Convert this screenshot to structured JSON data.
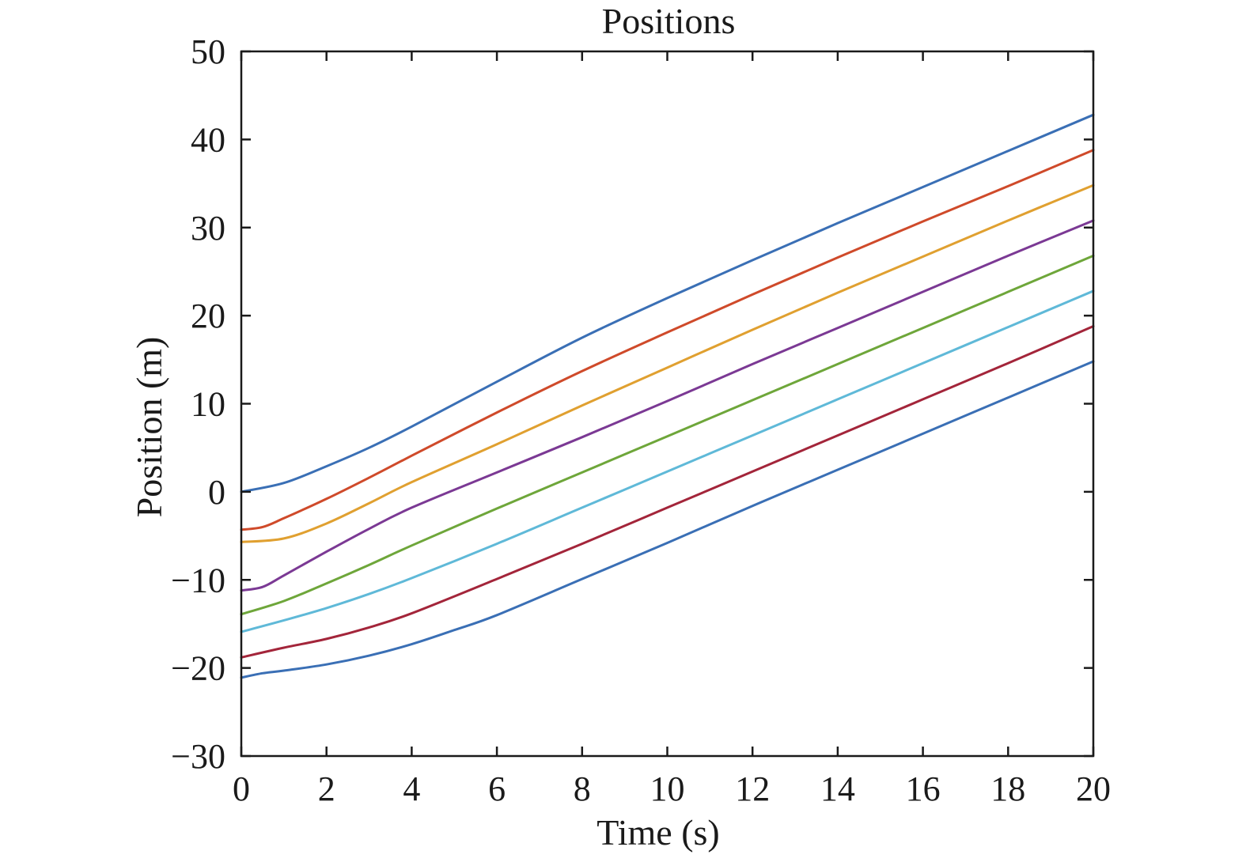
{
  "chart_data": {
    "type": "line",
    "title": "Positions",
    "xlabel": "Time (s)",
    "ylabel": "Position (m)",
    "xlim": [
      0,
      20
    ],
    "ylim": [
      -30,
      50
    ],
    "xticks": [
      0,
      2,
      4,
      6,
      8,
      10,
      12,
      14,
      16,
      18,
      20
    ],
    "yticks": [
      -30,
      -20,
      -10,
      0,
      10,
      20,
      30,
      40,
      50
    ],
    "xtick_labels": [
      "0",
      "2",
      "4",
      "6",
      "8",
      "10",
      "12",
      "14",
      "16",
      "18",
      "20"
    ],
    "ytick_labels": [
      "−30",
      "−20",
      "−10",
      "0",
      "10",
      "20",
      "30",
      "40",
      "50"
    ],
    "grid": false,
    "legend": "none",
    "series": [
      {
        "color": "#3a6fb5",
        "x": [
          0,
          1,
          2,
          3,
          4,
          6,
          8,
          10,
          12,
          14,
          16,
          18,
          20
        ],
        "y": [
          0,
          1.0,
          2.9,
          5.0,
          7.4,
          12.5,
          17.5,
          22.0,
          26.3,
          30.5,
          34.6,
          38.7,
          42.8
        ]
      },
      {
        "color": "#cf4a2a",
        "x": [
          0,
          0.5,
          1,
          2,
          3,
          4,
          6,
          8,
          10,
          12,
          14,
          16,
          18,
          20
        ],
        "y": [
          -4.3,
          -4.0,
          -3.0,
          -0.8,
          1.6,
          4.1,
          9.0,
          13.7,
          18.1,
          22.4,
          26.6,
          30.7,
          34.7,
          38.8
        ]
      },
      {
        "color": "#e0a030",
        "x": [
          0,
          1,
          2,
          3,
          4,
          6,
          8,
          10,
          12,
          14,
          16,
          18,
          20
        ],
        "y": [
          -5.7,
          -5.3,
          -3.6,
          -1.3,
          1.1,
          5.4,
          9.8,
          14.1,
          18.4,
          22.6,
          26.7,
          30.8,
          34.8
        ]
      },
      {
        "color": "#7b3994",
        "x": [
          0,
          0.5,
          1,
          2,
          3,
          4,
          6,
          8,
          10,
          12,
          14,
          16,
          18,
          20
        ],
        "y": [
          -11.2,
          -10.8,
          -9.5,
          -6.8,
          -4.2,
          -1.8,
          2.2,
          6.2,
          10.3,
          14.5,
          18.6,
          22.7,
          26.8,
          30.8
        ]
      },
      {
        "color": "#6ea63a",
        "x": [
          0,
          1,
          2,
          3,
          4,
          6,
          8,
          10,
          12,
          14,
          16,
          18,
          20
        ],
        "y": [
          -13.9,
          -12.4,
          -10.4,
          -8.3,
          -6.1,
          -1.9,
          2.2,
          6.3,
          10.4,
          14.5,
          18.6,
          22.7,
          26.8
        ]
      },
      {
        "color": "#5fb9d8",
        "x": [
          0,
          1,
          2,
          3,
          4,
          6,
          8,
          10,
          12,
          14,
          16,
          18,
          20
        ],
        "y": [
          -15.9,
          -14.6,
          -13.2,
          -11.6,
          -9.8,
          -5.9,
          -1.8,
          2.3,
          6.4,
          10.5,
          14.6,
          18.7,
          22.8
        ]
      },
      {
        "color": "#a3253a",
        "x": [
          0,
          1,
          2,
          3,
          4,
          6,
          8,
          10,
          12,
          14,
          16,
          18,
          20
        ],
        "y": [
          -18.8,
          -17.7,
          -16.7,
          -15.4,
          -13.8,
          -9.9,
          -5.9,
          -1.8,
          2.3,
          6.4,
          10.5,
          14.6,
          18.8
        ]
      },
      {
        "color": "#3a6fb5",
        "x": [
          0,
          0.5,
          1,
          2,
          3,
          4,
          5,
          6,
          8,
          10,
          12,
          14,
          16,
          18,
          20
        ],
        "y": [
          -21.1,
          -20.6,
          -20.3,
          -19.6,
          -18.6,
          -17.3,
          -15.7,
          -14.0,
          -9.9,
          -5.8,
          -1.6,
          2.5,
          6.6,
          10.7,
          14.8
        ]
      }
    ]
  }
}
